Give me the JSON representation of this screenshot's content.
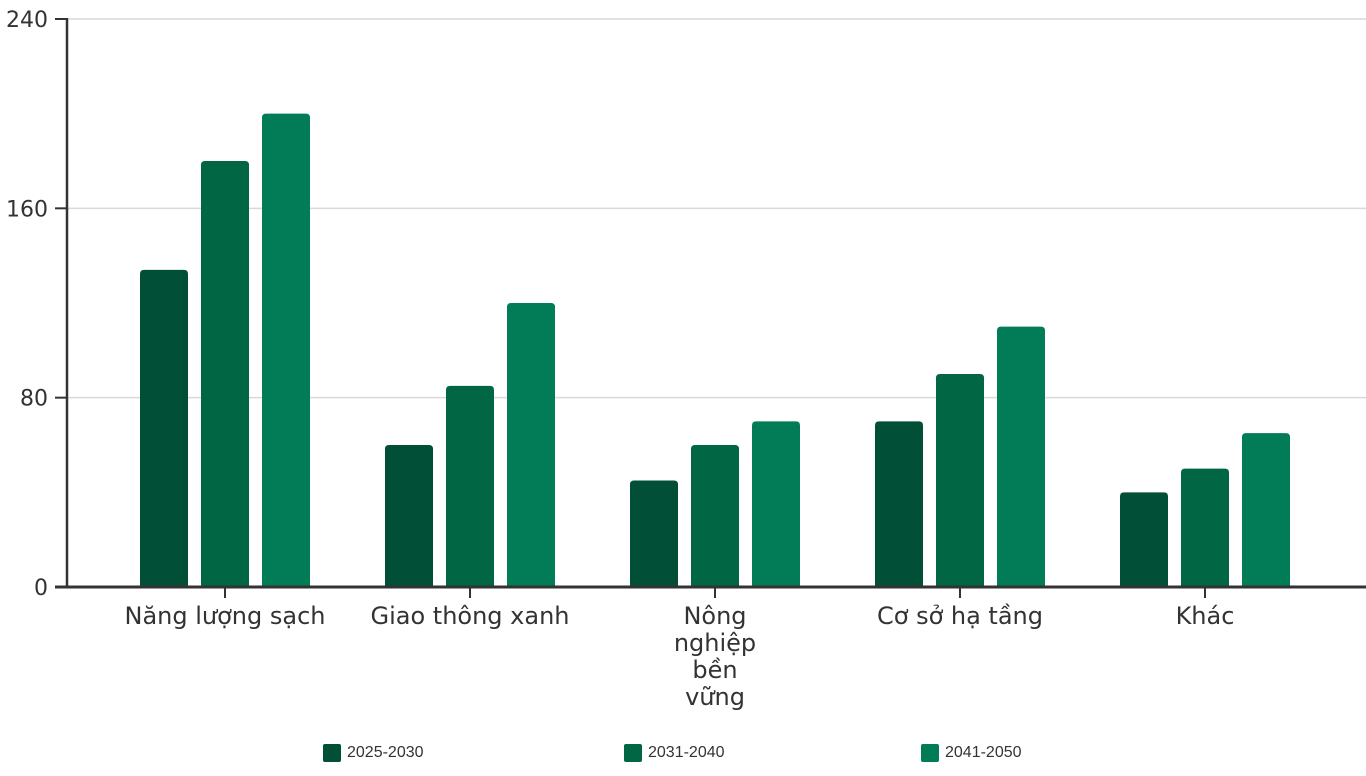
{
  "chart_data": {
    "type": "bar",
    "categories": [
      "Năng lượng sạch",
      "Giao thông xanh",
      "Nông nghiệp bền vững",
      "Cơ sở hạ tầng",
      "Khác"
    ],
    "category_label_lines": [
      [
        "Năng lượng sạch"
      ],
      [
        "Giao thông xanh"
      ],
      [
        "Nông",
        "nghiệp",
        "bền",
        "vững"
      ],
      [
        "Cơ sở hạ tầng"
      ],
      [
        "Khác"
      ]
    ],
    "series": [
      {
        "name": "2025-2030",
        "color": "#014f36",
        "values": [
          134,
          60,
          45,
          70,
          40
        ]
      },
      {
        "name": "2031-2040",
        "color": "#006644",
        "values": [
          180,
          85,
          60,
          90,
          50
        ]
      },
      {
        "name": "2041-2050",
        "color": "#017c56",
        "values": [
          200,
          120,
          70,
          110,
          65
        ]
      }
    ],
    "ylim": [
      0,
      240
    ],
    "yticks": [
      0,
      80,
      160,
      240
    ],
    "grid": true,
    "legend_position": "bottom",
    "title": "",
    "xlabel": "",
    "ylabel": ""
  }
}
